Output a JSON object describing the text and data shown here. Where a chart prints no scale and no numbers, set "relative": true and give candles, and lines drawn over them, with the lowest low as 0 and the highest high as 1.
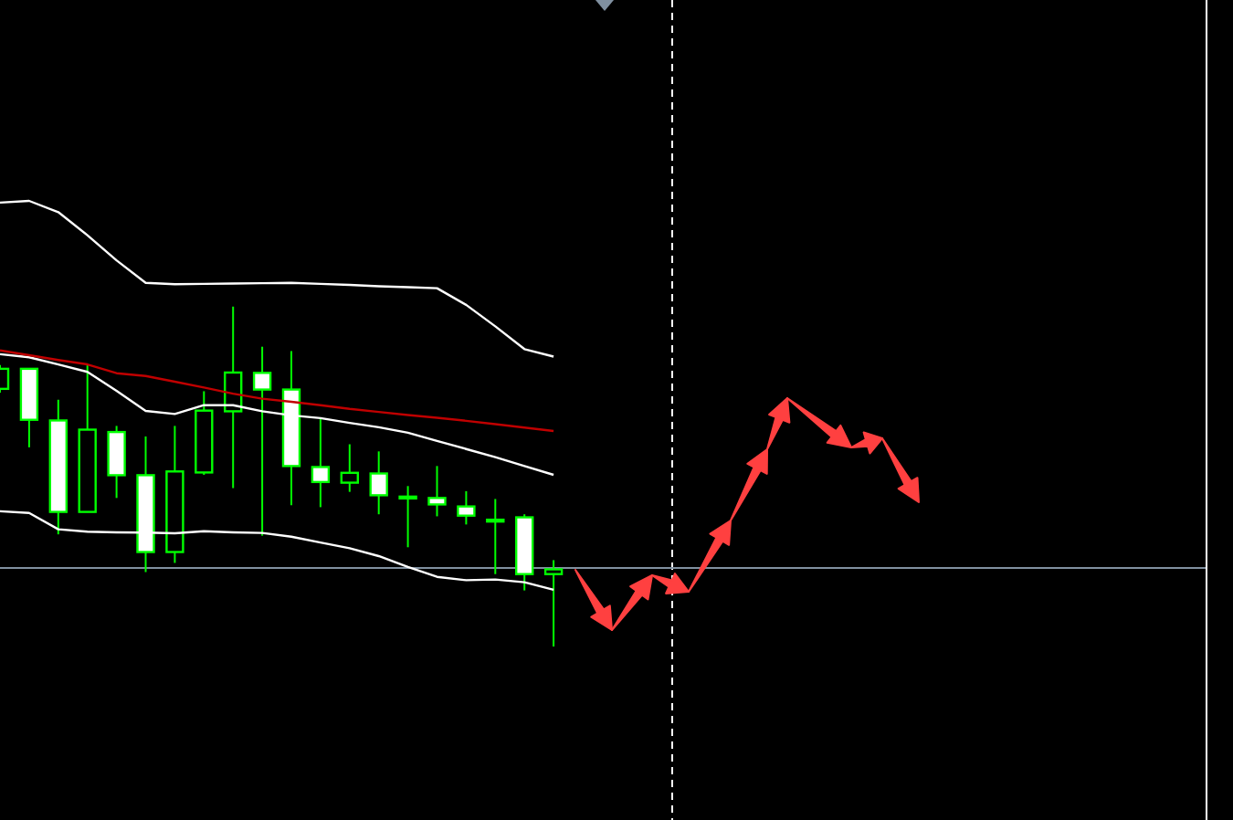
{
  "chart_data": {
    "type": "candlestick",
    "relative": true,
    "color": "#00ff00",
    "categories": [
      null,
      null,
      null,
      null,
      null,
      null,
      null,
      null,
      null,
      null,
      null,
      null,
      null,
      null,
      null,
      null,
      null,
      null,
      null,
      null
    ],
    "ohlc": [
      [
        0.758,
        0.828,
        0.747,
        0.817
      ],
      [
        0.817,
        0.817,
        0.586,
        0.667
      ],
      [
        0.665,
        0.726,
        0.33,
        0.396
      ],
      [
        0.396,
        0.828,
        0.396,
        0.638
      ],
      [
        0.631,
        0.649,
        0.437,
        0.504
      ],
      [
        0.504,
        0.618,
        0.219,
        0.278
      ],
      [
        0.278,
        0.649,
        0.246,
        0.515
      ],
      [
        0.512,
        0.751,
        0.505,
        0.694
      ],
      [
        0.692,
        1,
        0.466,
        0.806
      ],
      [
        0.805,
        0.882,
        0.326,
        0.756
      ],
      [
        0.756,
        0.869,
        0.416,
        0.531
      ],
      [
        0.528,
        0.672,
        0.41,
        0.484
      ],
      [
        0.482,
        0.595,
        0.455,
        0.511
      ],
      [
        0.509,
        0.574,
        0.389,
        0.445
      ],
      [
        0.441,
        0.472,
        0.292,
        0.441
      ],
      [
        0.437,
        0.531,
        0.383,
        0.418
      ],
      [
        0.412,
        0.457,
        0.359,
        0.385
      ],
      [
        0.373,
        0.434,
        0.213,
        0.373
      ],
      [
        0.38,
        0.389,
        0.165,
        0.213
      ],
      [
        0.213,
        0.254,
        0,
        0.227
      ]
    ],
    "series": [
      {
        "type": "line",
        "color": "#ffffff",
        "values": [
          1.306,
          1.311,
          1.278,
          1.21,
          1.136,
          1.07,
          1.066,
          1.067,
          1.068,
          1.069,
          1.07,
          1.067,
          1.064,
          1.06,
          1.057,
          1.054,
          1.005,
          0.942,
          0.875,
          0.853
        ]
      },
      {
        "type": "line",
        "color": "#ffffff",
        "values": [
          0.86,
          0.851,
          0.83,
          0.808,
          0.752,
          0.693,
          0.684,
          0.71,
          0.71,
          0.692,
          0.68,
          0.672,
          0.658,
          0.645,
          0.629,
          0.605,
          0.581,
          0.557,
          0.531,
          0.505
        ]
      },
      {
        "type": "line",
        "color": "#ffffff",
        "values": [
          0.398,
          0.393,
          0.345,
          0.338,
          0.336,
          0.335,
          0.333,
          0.339,
          0.336,
          0.334,
          0.323,
          0.306,
          0.289,
          0.266,
          0.234,
          0.205,
          0.195,
          0.197,
          0.189,
          0.167
        ]
      },
      {
        "type": "line",
        "color": "#c00000",
        "values": [
          0.871,
          0.857,
          0.843,
          0.83,
          0.804,
          0.796,
          0.779,
          0.762,
          0.744,
          0.729,
          0.72,
          0.71,
          0.699,
          0.69,
          0.681,
          0.673,
          0.664,
          0.654,
          0.644,
          0.634
        ]
      }
    ],
    "ref_lines": [
      {
        "axis": "y",
        "value": 0.231,
        "color": "#8090a0",
        "line_style": "solid"
      }
    ]
  }
}
